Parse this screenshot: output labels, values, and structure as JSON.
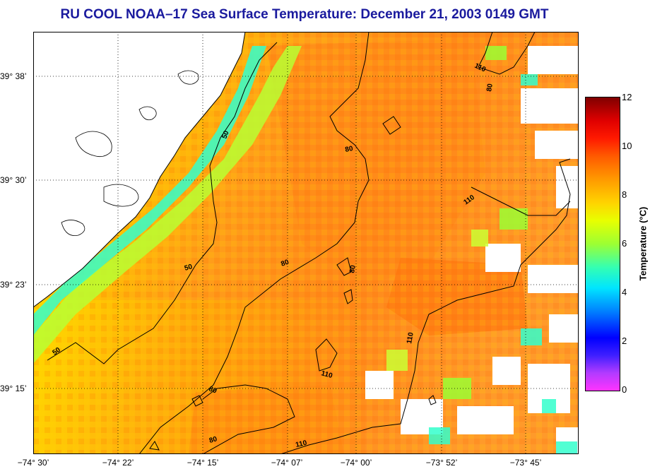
{
  "title": "RU COOL  NOAA–17  Sea Surface Temperature:  December 21, 2003 0149 GMT",
  "y_axis": {
    "labels": [
      "39° 38’",
      "39° 30’",
      "39° 23’",
      "39° 15’"
    ]
  },
  "x_axis": {
    "labels": [
      "−74° 30’",
      "−74° 22’",
      "−74° 15’",
      "−74° 07’",
      "−74° 00’",
      "−73° 52’",
      "−73° 45’"
    ]
  },
  "colorbar": {
    "title": "Temperature (°C)",
    "ticks": [
      "12",
      "10",
      "8",
      "6",
      "4",
      "2",
      "0"
    ],
    "range": [
      0,
      12
    ]
  },
  "contours": {
    "labels": [
      "50",
      "50",
      "50",
      "80",
      "80",
      "80",
      "80",
      "80",
      "110",
      "110",
      "110",
      "110",
      "110",
      "80"
    ]
  },
  "colors": {
    "title": "#1a1a9e",
    "land": "#ffffff",
    "cloud_missing": "#ffffff",
    "warm_core": "#ff8c1a",
    "near_shore": "#ffe000",
    "coastal_cold": "#33ffcc"
  }
}
